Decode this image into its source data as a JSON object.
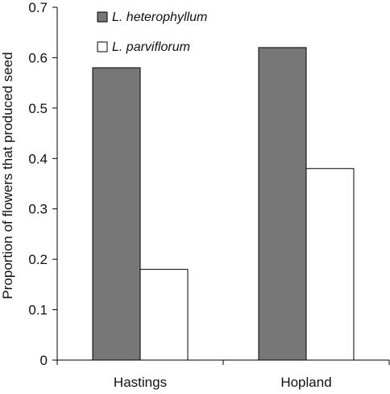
{
  "chart_data": {
    "type": "bar",
    "title": "",
    "xlabel": "",
    "ylabel": "Proportion of flowers that produced seed",
    "categories": [
      "Hastings",
      "Hopland"
    ],
    "ylim": [
      0,
      0.7
    ],
    "yticks": [
      0,
      0.1,
      0.2,
      0.3,
      0.4,
      0.5,
      0.6,
      0.7
    ],
    "ytick_labels": [
      "0",
      "0.1",
      "0.2",
      "0.3",
      "0.4",
      "0.5",
      "0.6",
      "0.7"
    ],
    "grid": false,
    "legend_position": "top-left",
    "series": [
      {
        "name": "L. heterophyllum",
        "values": [
          0.58,
          0.62
        ],
        "color": "#777777"
      },
      {
        "name": "L. parviflorum",
        "values": [
          0.18,
          0.38
        ],
        "color": "#ffffff"
      }
    ]
  }
}
